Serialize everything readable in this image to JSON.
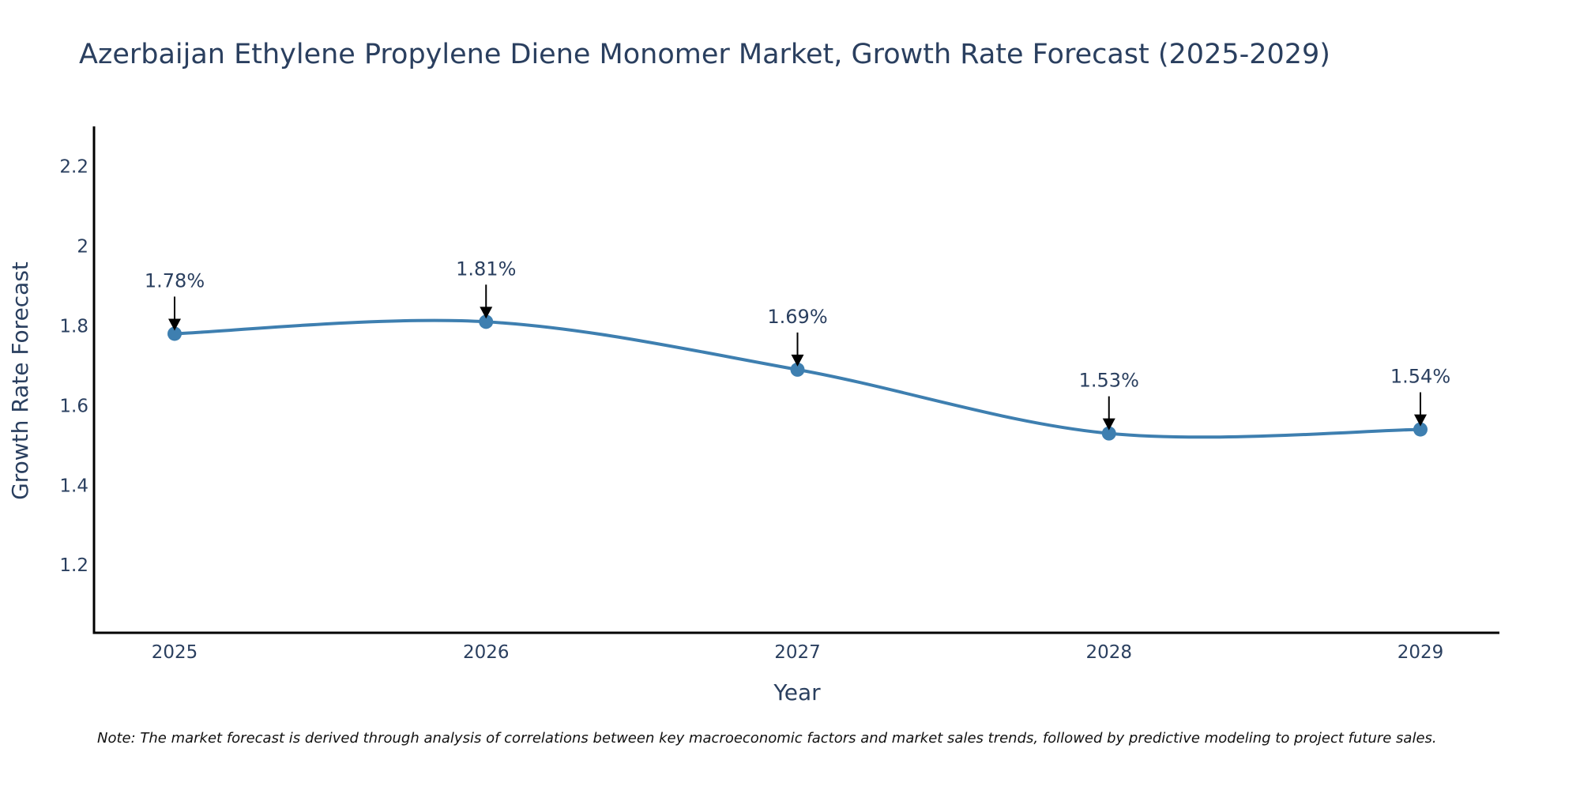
{
  "chart_data": {
    "type": "line",
    "title": "Azerbaijan Ethylene Propylene Diene Monomer Market, Growth Rate Forecast (2025-2029)",
    "xlabel": "Year",
    "ylabel": "Growth Rate Forecast",
    "categories": [
      "2025",
      "2026",
      "2027",
      "2028",
      "2029"
    ],
    "series": [
      {
        "name": "Growth Rate Forecast",
        "values": [
          1.78,
          1.81,
          1.69,
          1.53,
          1.54
        ],
        "labels": [
          "1.78%",
          "1.81%",
          "1.69%",
          "1.53%",
          "1.54%"
        ]
      }
    ],
    "ylim": [
      1.03,
      2.3
    ],
    "yticks": [
      1.2,
      1.4,
      1.6,
      1.8,
      2.0,
      2.2
    ],
    "ytick_labels": [
      "1.2",
      "1.4",
      "1.6",
      "1.8",
      "2",
      "2.2"
    ],
    "grid": false,
    "line_shape": "spline",
    "colors": {
      "line": "#3e7fb0",
      "marker": "#3e7fb0",
      "arrow": "#000000",
      "axis": "#000000",
      "text": "#2a3f5f"
    }
  },
  "note": "Note: The market forecast is derived through analysis of correlations between key macroeconomic factors and market sales trends, followed by predictive modeling to project future sales."
}
